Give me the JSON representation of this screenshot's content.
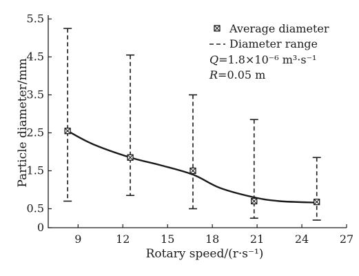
{
  "chart_data": {
    "type": "scatter",
    "xlabel": "Rotary speed/(r·s⁻¹)",
    "ylabel": "Particle diameter/mm",
    "xlim": [
      7,
      27
    ],
    "ylim": [
      0,
      5.6
    ],
    "xticks": [
      9,
      12,
      15,
      18,
      21,
      24,
      27
    ],
    "yticks": [
      0,
      0.5,
      1.5,
      2.5,
      3.5,
      4.5,
      5.5
    ],
    "xtick_labels": [
      "9",
      "12",
      "15",
      "18",
      "21",
      "24",
      "27"
    ],
    "ytick_labels": [
      "0",
      "0.5",
      "1.5",
      "2.5",
      "3.5",
      "4.5",
      "5.5"
    ],
    "legend": {
      "placement": "top-right",
      "average_label": "Average diameter",
      "range_label": "Diameter range",
      "q_value": "1.8×10⁻⁶ m³·s⁻¹",
      "r_value": "0.05 m"
    },
    "series": [
      {
        "name": "Average diameter",
        "x": [
          8.3,
          12.5,
          16.7,
          20.8,
          25.0
        ],
        "y": [
          2.55,
          1.85,
          1.5,
          0.7,
          0.68
        ]
      },
      {
        "name": "Diameter range",
        "x": [
          8.3,
          12.5,
          16.7,
          20.8,
          25.0
        ],
        "low": [
          0.7,
          0.85,
          0.5,
          0.25,
          0.2
        ],
        "high": [
          5.25,
          4.55,
          3.5,
          2.85,
          1.85
        ]
      }
    ],
    "trend_curve": {
      "x": [
        8.3,
        10.0,
        12.5,
        14.5,
        16.7,
        18.5,
        20.8,
        22.5,
        25.0
      ],
      "y": [
        2.55,
        2.2,
        1.85,
        1.65,
        1.4,
        1.05,
        0.8,
        0.7,
        0.66
      ]
    }
  }
}
